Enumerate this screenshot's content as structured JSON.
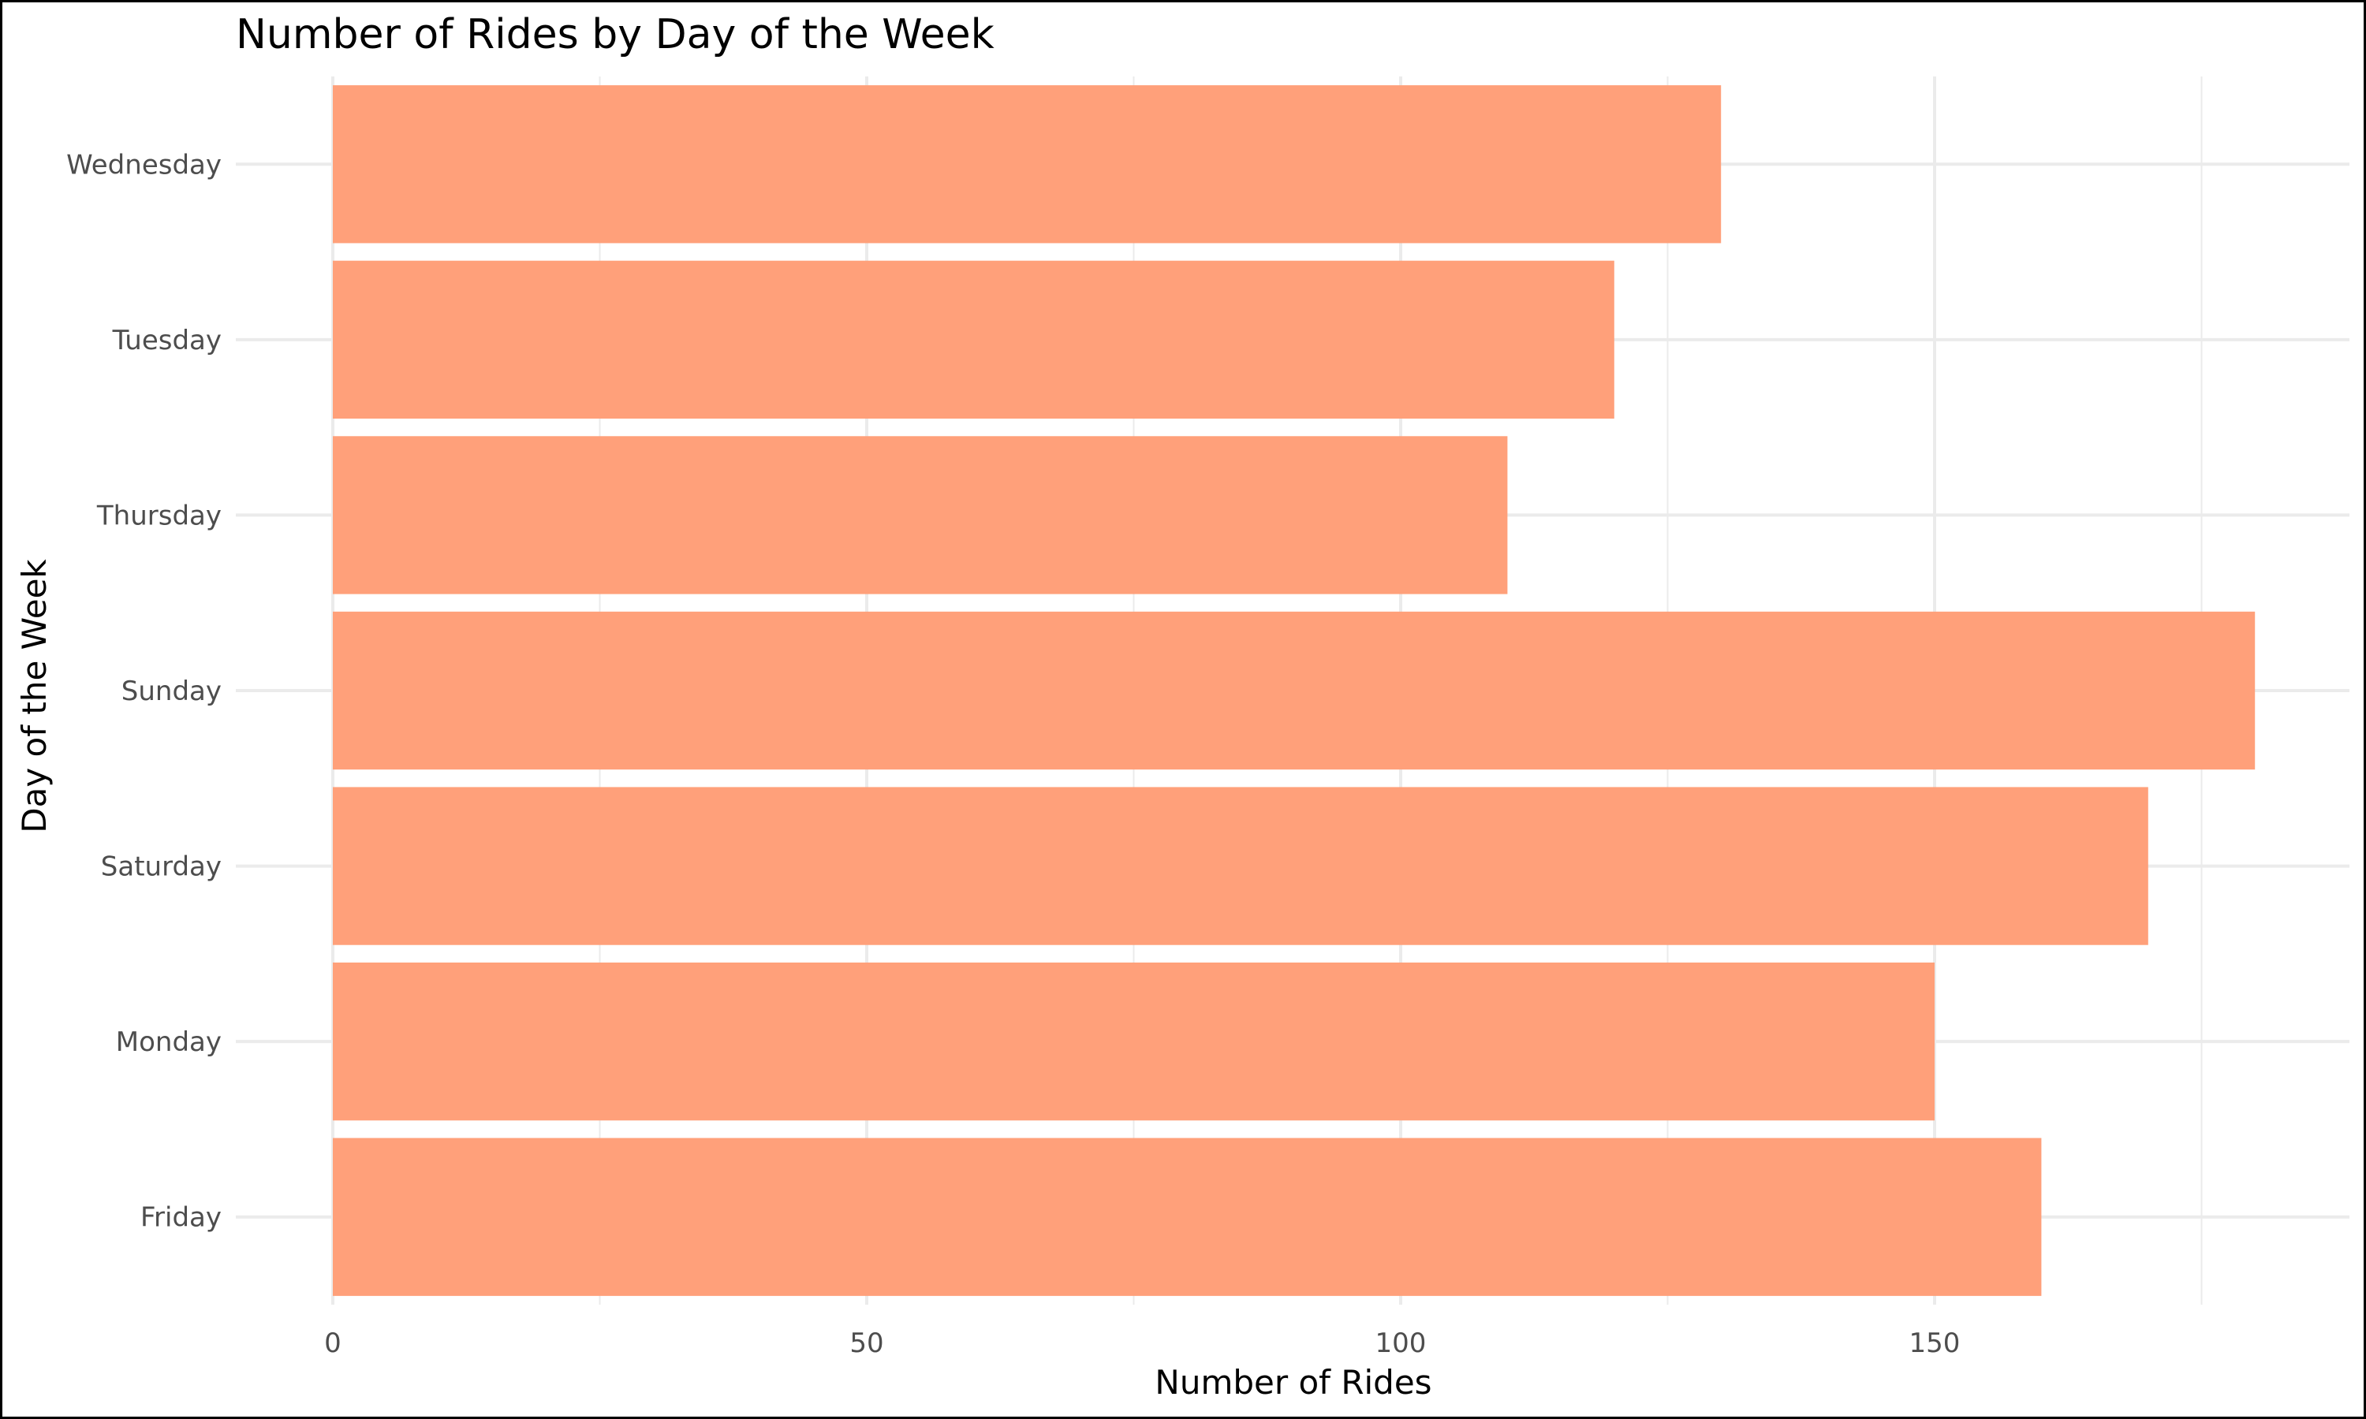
{
  "chart_data": {
    "type": "bar",
    "orientation": "horizontal",
    "title": "Number of Rides by Day of the Week",
    "xlabel": "Number of Rides",
    "ylabel": "Day of the Week",
    "categories": [
      "Wednesday",
      "Tuesday",
      "Thursday",
      "Sunday",
      "Saturday",
      "Monday",
      "Friday"
    ],
    "values": [
      130,
      120,
      110,
      180,
      170,
      150,
      160
    ],
    "xlim": [
      0,
      188
    ],
    "x_ticks": [
      0,
      50,
      100,
      150
    ],
    "x_minor_ticks": [
      25,
      75,
      125,
      175
    ],
    "grid": true,
    "colors": {
      "bar": "#FFA07A",
      "grid": "#EBEBEB",
      "tick_text": "#4D4D4D",
      "text": "#000000"
    }
  }
}
